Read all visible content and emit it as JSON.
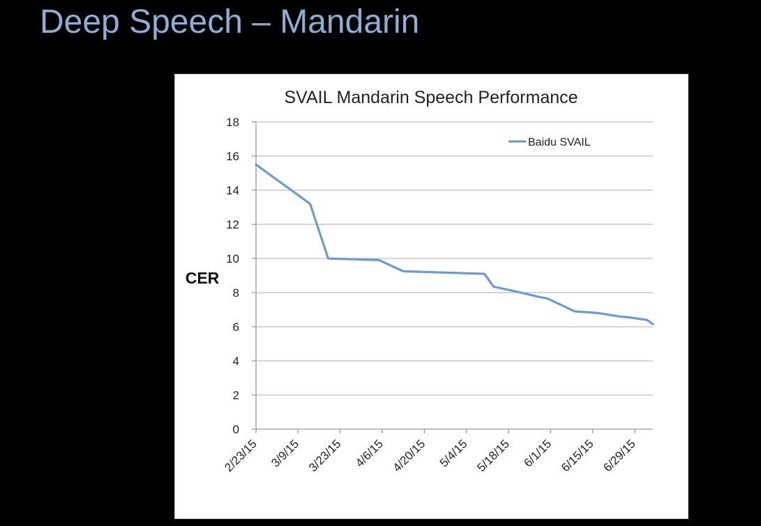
{
  "slide": {
    "title": "Deep Speech – Mandarin"
  },
  "chart_data": {
    "type": "line",
    "title": "SVAIL Mandarin Speech Performance",
    "xlabel": "",
    "ylabel": "CER",
    "ylim": [
      0,
      18
    ],
    "yticks": [
      "0",
      "2",
      "4",
      "6",
      "8",
      "10",
      "12",
      "14",
      "16",
      "18"
    ],
    "xticks": [
      "2/23/15",
      "3/9/15",
      "3/23/15",
      "4/6/15",
      "4/20/15",
      "5/4/15",
      "5/18/15",
      "6/1/15",
      "6/15/15",
      "6/29/15"
    ],
    "xlim": [
      "2015-02-23",
      "2015-07-05"
    ],
    "grid": "horizontal",
    "legend": "top-right",
    "line_color": "#6b9bd2",
    "series": [
      {
        "name": "Baidu SVAIL",
        "points": [
          {
            "x": "2015-02-23",
            "y": 15.5
          },
          {
            "x": "2015-03-13",
            "y": 13.2
          },
          {
            "x": "2015-03-19",
            "y": 10.0
          },
          {
            "x": "2015-04-05",
            "y": 9.9
          },
          {
            "x": "2015-04-13",
            "y": 9.25
          },
          {
            "x": "2015-05-10",
            "y": 9.1
          },
          {
            "x": "2015-05-13",
            "y": 8.35
          },
          {
            "x": "2015-05-21",
            "y": 8.05
          },
          {
            "x": "2015-05-28",
            "y": 7.75
          },
          {
            "x": "2015-05-31",
            "y": 7.65
          },
          {
            "x": "2015-06-09",
            "y": 6.9
          },
          {
            "x": "2015-06-17",
            "y": 6.8
          },
          {
            "x": "2015-06-24",
            "y": 6.6
          },
          {
            "x": "2015-06-27",
            "y": 6.55
          },
          {
            "x": "2015-07-01",
            "y": 6.45
          },
          {
            "x": "2015-07-03",
            "y": 6.4
          },
          {
            "x": "2015-07-05",
            "y": 6.15
          }
        ]
      }
    ]
  }
}
